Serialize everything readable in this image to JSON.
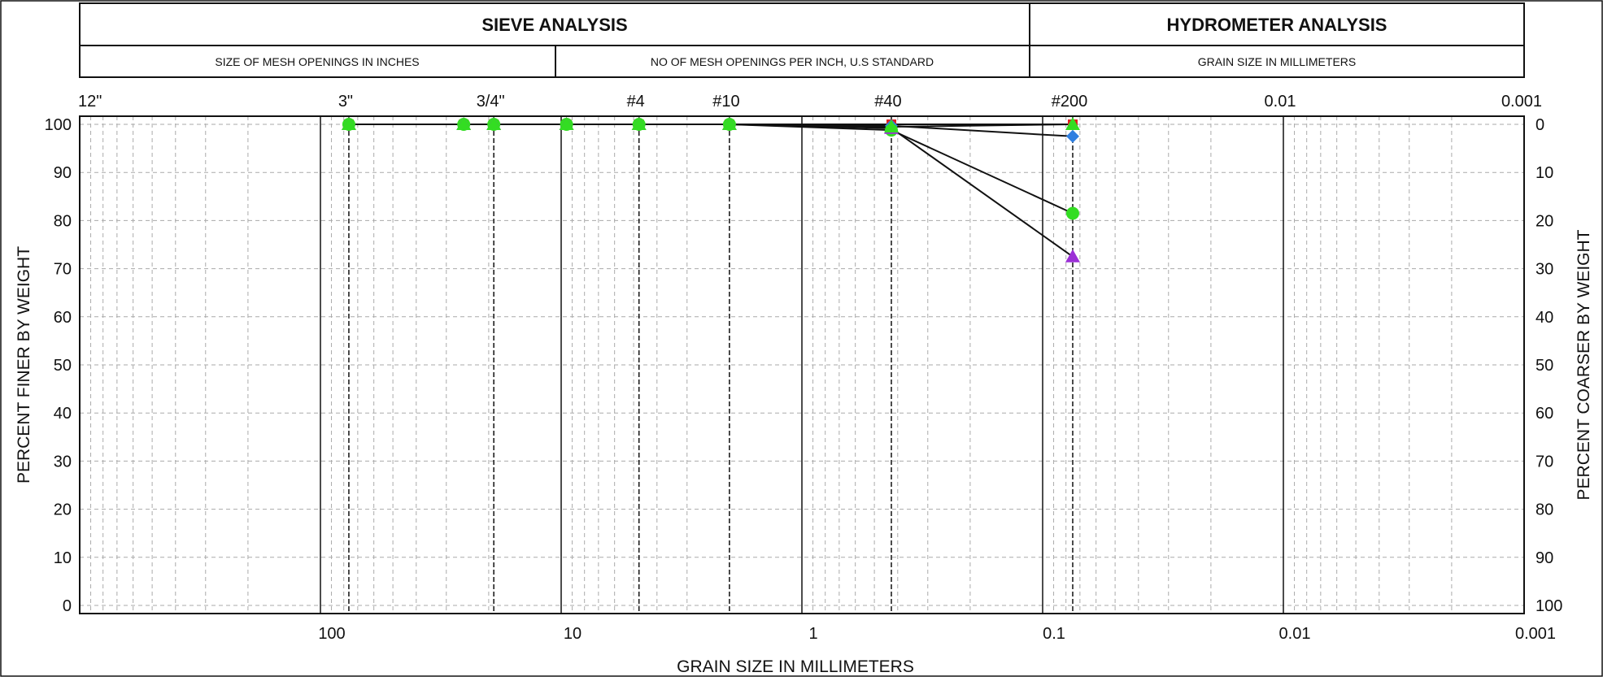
{
  "header": {
    "sieve_title": "SIEVE ANALYSIS",
    "hydrometer_title": "HYDROMETER ANALYSIS",
    "mesh_inches": "SIZE OF MESH OPENINGS IN INCHES",
    "mesh_per_inch": "NO OF MESH OPENINGS PER INCH, U.S STANDARD",
    "grain_mm": "GRAIN SIZE IN MILLIMETERS"
  },
  "chart_data": {
    "type": "line",
    "title": "",
    "xlabel": "GRAIN SIZE IN MILLIMETERS",
    "ylabel": "PERCENT FINER BY WEIGHT",
    "ylabel_right": "PERCENT COARSER BY WEIGHT",
    "x_scale": "log-reversed",
    "xlim": [
      1000,
      0.001
    ],
    "ylim": [
      0,
      100
    ],
    "grid": true,
    "x_ticks": [
      {
        "value": 100,
        "label": "100"
      },
      {
        "value": 10,
        "label": "10"
      },
      {
        "value": 1,
        "label": "1"
      },
      {
        "value": 0.1,
        "label": "0.1"
      },
      {
        "value": 0.01,
        "label": "0.01"
      },
      {
        "value": 0.001,
        "label": "0.001"
      }
    ],
    "y_ticks_left": [
      "0",
      "10",
      "20",
      "30",
      "40",
      "50",
      "60",
      "70",
      "80",
      "90",
      "100"
    ],
    "y_ticks_right": [
      "100",
      "90",
      "80",
      "70",
      "60",
      "50",
      "40",
      "30",
      "20",
      "10",
      "0"
    ],
    "sieves_top": [
      {
        "label": "12\"",
        "size_mm": 304.8,
        "line": false
      },
      {
        "label": "3\"",
        "size_mm": 76.2,
        "line": true
      },
      {
        "label": "3/4\"",
        "size_mm": 19.05,
        "line": true
      },
      {
        "label": "#4",
        "size_mm": 4.75,
        "line": true
      },
      {
        "label": "#10",
        "size_mm": 2.0,
        "line": true
      },
      {
        "label": "#40",
        "size_mm": 0.425,
        "line": true
      },
      {
        "label": "#200",
        "size_mm": 0.075,
        "line": true
      },
      {
        "label": "0.01",
        "size_mm": 0.01,
        "line": false
      },
      {
        "label": "0.001",
        "size_mm": 0.001,
        "line": false
      }
    ],
    "series": [
      {
        "color": "#e02020",
        "marker": "square",
        "points": [
          [
            76.2,
            100
          ],
          [
            25.4,
            100
          ],
          [
            19.05,
            100
          ],
          [
            9.5,
            100
          ],
          [
            4.75,
            100
          ],
          [
            2.0,
            100
          ],
          [
            0.425,
            100
          ],
          [
            0.075,
            100
          ]
        ]
      },
      {
        "color": "#2f7fe0",
        "marker": "diamond",
        "points": [
          [
            76.2,
            100
          ],
          [
            25.4,
            100
          ],
          [
            19.05,
            100
          ],
          [
            9.5,
            100
          ],
          [
            4.75,
            100
          ],
          [
            2.0,
            100
          ],
          [
            0.425,
            99.7
          ],
          [
            0.075,
            97.5
          ]
        ]
      },
      {
        "color": "#33dd22",
        "marker": "circle",
        "points": [
          [
            76.2,
            100
          ],
          [
            25.4,
            100
          ],
          [
            19.05,
            100
          ],
          [
            9.5,
            100
          ],
          [
            4.75,
            100
          ],
          [
            2.0,
            100
          ],
          [
            0.425,
            98.8
          ],
          [
            0.075,
            81.5
          ]
        ]
      },
      {
        "color": "#9b2fd6",
        "marker": "triangle",
        "points": [
          [
            76.2,
            100
          ],
          [
            25.4,
            100
          ],
          [
            19.05,
            100
          ],
          [
            9.5,
            100
          ],
          [
            4.75,
            100
          ],
          [
            2.0,
            100
          ],
          [
            0.425,
            99.2
          ],
          [
            0.075,
            72.5
          ]
        ]
      },
      {
        "color": "#33dd22",
        "marker": "triangle",
        "points": [
          [
            76.2,
            100
          ],
          [
            25.4,
            100
          ],
          [
            19.05,
            100
          ],
          [
            9.5,
            100
          ],
          [
            4.75,
            100
          ],
          [
            2.0,
            100
          ],
          [
            0.425,
            99.5
          ],
          [
            0.075,
            100
          ]
        ]
      }
    ]
  }
}
